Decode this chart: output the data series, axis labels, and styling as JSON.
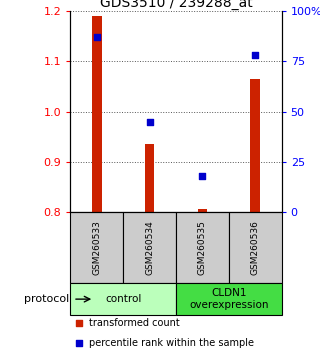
{
  "title": "GDS3510 / 239288_at",
  "samples": [
    "GSM260533",
    "GSM260534",
    "GSM260535",
    "GSM260536"
  ],
  "red_values": [
    1.19,
    0.935,
    0.806,
    1.065
  ],
  "blue_values": [
    87,
    45,
    18,
    78
  ],
  "ylim_left": [
    0.8,
    1.2
  ],
  "ylim_right": [
    0,
    100
  ],
  "yticks_left": [
    0.8,
    0.9,
    1.0,
    1.1,
    1.2
  ],
  "yticks_right": [
    0,
    25,
    50,
    75,
    100
  ],
  "ytick_labels_right": [
    "0",
    "25",
    "50",
    "75",
    "100%"
  ],
  "groups": [
    {
      "label": "control",
      "samples": [
        0,
        1
      ],
      "color": "#bbffbb"
    },
    {
      "label": "CLDN1\noverexpression",
      "samples": [
        2,
        3
      ],
      "color": "#44dd44"
    }
  ],
  "bar_color": "#cc2200",
  "dot_color": "#0000cc",
  "bar_width": 0.18,
  "dot_size": 22,
  "grid_color": "#555555",
  "sample_bg_color": "#cccccc",
  "protocol_label": "protocol",
  "legend_red_label": "transformed count",
  "legend_blue_label": "percentile rank within the sample",
  "title_fontsize": 10,
  "tick_fontsize": 8,
  "label_fontsize": 8
}
